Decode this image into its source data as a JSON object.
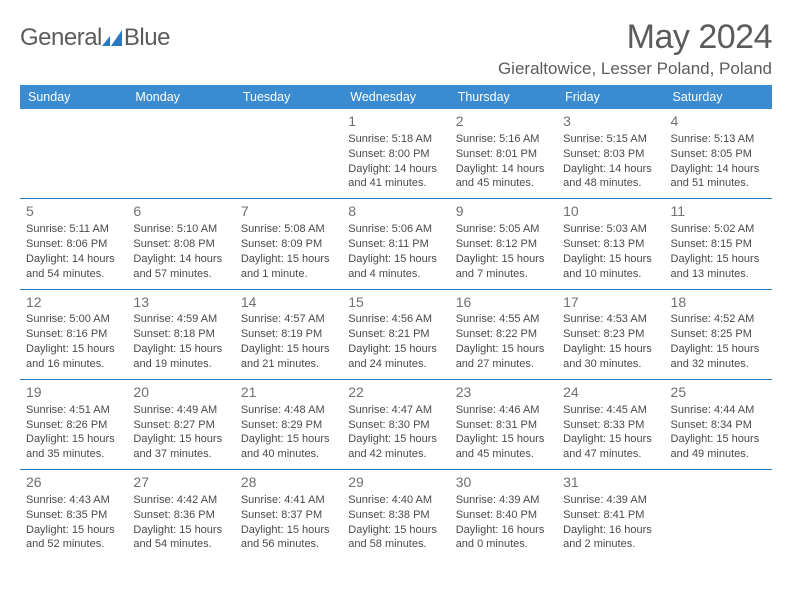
{
  "logo": {
    "word1": "General",
    "word2": "Blue"
  },
  "title": "May 2024",
  "location": "Gieraltowice, Lesser Poland, Poland",
  "colors": {
    "header_bg": "#3b8bd0",
    "header_fg": "#ffffff",
    "rule": "#2978c0",
    "text": "#4a4a4a",
    "muted": "#707070"
  },
  "weekdays": [
    "Sunday",
    "Monday",
    "Tuesday",
    "Wednesday",
    "Thursday",
    "Friday",
    "Saturday"
  ],
  "weeks": [
    [
      null,
      null,
      null,
      {
        "n": "1",
        "sr": "Sunrise: 5:18 AM",
        "ss": "Sunset: 8:00 PM",
        "d1": "Daylight: 14 hours",
        "d2": "and 41 minutes."
      },
      {
        "n": "2",
        "sr": "Sunrise: 5:16 AM",
        "ss": "Sunset: 8:01 PM",
        "d1": "Daylight: 14 hours",
        "d2": "and 45 minutes."
      },
      {
        "n": "3",
        "sr": "Sunrise: 5:15 AM",
        "ss": "Sunset: 8:03 PM",
        "d1": "Daylight: 14 hours",
        "d2": "and 48 minutes."
      },
      {
        "n": "4",
        "sr": "Sunrise: 5:13 AM",
        "ss": "Sunset: 8:05 PM",
        "d1": "Daylight: 14 hours",
        "d2": "and 51 minutes."
      }
    ],
    [
      {
        "n": "5",
        "sr": "Sunrise: 5:11 AM",
        "ss": "Sunset: 8:06 PM",
        "d1": "Daylight: 14 hours",
        "d2": "and 54 minutes."
      },
      {
        "n": "6",
        "sr": "Sunrise: 5:10 AM",
        "ss": "Sunset: 8:08 PM",
        "d1": "Daylight: 14 hours",
        "d2": "and 57 minutes."
      },
      {
        "n": "7",
        "sr": "Sunrise: 5:08 AM",
        "ss": "Sunset: 8:09 PM",
        "d1": "Daylight: 15 hours",
        "d2": "and 1 minute."
      },
      {
        "n": "8",
        "sr": "Sunrise: 5:06 AM",
        "ss": "Sunset: 8:11 PM",
        "d1": "Daylight: 15 hours",
        "d2": "and 4 minutes."
      },
      {
        "n": "9",
        "sr": "Sunrise: 5:05 AM",
        "ss": "Sunset: 8:12 PM",
        "d1": "Daylight: 15 hours",
        "d2": "and 7 minutes."
      },
      {
        "n": "10",
        "sr": "Sunrise: 5:03 AM",
        "ss": "Sunset: 8:13 PM",
        "d1": "Daylight: 15 hours",
        "d2": "and 10 minutes."
      },
      {
        "n": "11",
        "sr": "Sunrise: 5:02 AM",
        "ss": "Sunset: 8:15 PM",
        "d1": "Daylight: 15 hours",
        "d2": "and 13 minutes."
      }
    ],
    [
      {
        "n": "12",
        "sr": "Sunrise: 5:00 AM",
        "ss": "Sunset: 8:16 PM",
        "d1": "Daylight: 15 hours",
        "d2": "and 16 minutes."
      },
      {
        "n": "13",
        "sr": "Sunrise: 4:59 AM",
        "ss": "Sunset: 8:18 PM",
        "d1": "Daylight: 15 hours",
        "d2": "and 19 minutes."
      },
      {
        "n": "14",
        "sr": "Sunrise: 4:57 AM",
        "ss": "Sunset: 8:19 PM",
        "d1": "Daylight: 15 hours",
        "d2": "and 21 minutes."
      },
      {
        "n": "15",
        "sr": "Sunrise: 4:56 AM",
        "ss": "Sunset: 8:21 PM",
        "d1": "Daylight: 15 hours",
        "d2": "and 24 minutes."
      },
      {
        "n": "16",
        "sr": "Sunrise: 4:55 AM",
        "ss": "Sunset: 8:22 PM",
        "d1": "Daylight: 15 hours",
        "d2": "and 27 minutes."
      },
      {
        "n": "17",
        "sr": "Sunrise: 4:53 AM",
        "ss": "Sunset: 8:23 PM",
        "d1": "Daylight: 15 hours",
        "d2": "and 30 minutes."
      },
      {
        "n": "18",
        "sr": "Sunrise: 4:52 AM",
        "ss": "Sunset: 8:25 PM",
        "d1": "Daylight: 15 hours",
        "d2": "and 32 minutes."
      }
    ],
    [
      {
        "n": "19",
        "sr": "Sunrise: 4:51 AM",
        "ss": "Sunset: 8:26 PM",
        "d1": "Daylight: 15 hours",
        "d2": "and 35 minutes."
      },
      {
        "n": "20",
        "sr": "Sunrise: 4:49 AM",
        "ss": "Sunset: 8:27 PM",
        "d1": "Daylight: 15 hours",
        "d2": "and 37 minutes."
      },
      {
        "n": "21",
        "sr": "Sunrise: 4:48 AM",
        "ss": "Sunset: 8:29 PM",
        "d1": "Daylight: 15 hours",
        "d2": "and 40 minutes."
      },
      {
        "n": "22",
        "sr": "Sunrise: 4:47 AM",
        "ss": "Sunset: 8:30 PM",
        "d1": "Daylight: 15 hours",
        "d2": "and 42 minutes."
      },
      {
        "n": "23",
        "sr": "Sunrise: 4:46 AM",
        "ss": "Sunset: 8:31 PM",
        "d1": "Daylight: 15 hours",
        "d2": "and 45 minutes."
      },
      {
        "n": "24",
        "sr": "Sunrise: 4:45 AM",
        "ss": "Sunset: 8:33 PM",
        "d1": "Daylight: 15 hours",
        "d2": "and 47 minutes."
      },
      {
        "n": "25",
        "sr": "Sunrise: 4:44 AM",
        "ss": "Sunset: 8:34 PM",
        "d1": "Daylight: 15 hours",
        "d2": "and 49 minutes."
      }
    ],
    [
      {
        "n": "26",
        "sr": "Sunrise: 4:43 AM",
        "ss": "Sunset: 8:35 PM",
        "d1": "Daylight: 15 hours",
        "d2": "and 52 minutes."
      },
      {
        "n": "27",
        "sr": "Sunrise: 4:42 AM",
        "ss": "Sunset: 8:36 PM",
        "d1": "Daylight: 15 hours",
        "d2": "and 54 minutes."
      },
      {
        "n": "28",
        "sr": "Sunrise: 4:41 AM",
        "ss": "Sunset: 8:37 PM",
        "d1": "Daylight: 15 hours",
        "d2": "and 56 minutes."
      },
      {
        "n": "29",
        "sr": "Sunrise: 4:40 AM",
        "ss": "Sunset: 8:38 PM",
        "d1": "Daylight: 15 hours",
        "d2": "and 58 minutes."
      },
      {
        "n": "30",
        "sr": "Sunrise: 4:39 AM",
        "ss": "Sunset: 8:40 PM",
        "d1": "Daylight: 16 hours",
        "d2": "and 0 minutes."
      },
      {
        "n": "31",
        "sr": "Sunrise: 4:39 AM",
        "ss": "Sunset: 8:41 PM",
        "d1": "Daylight: 16 hours",
        "d2": "and 2 minutes."
      },
      null
    ]
  ]
}
